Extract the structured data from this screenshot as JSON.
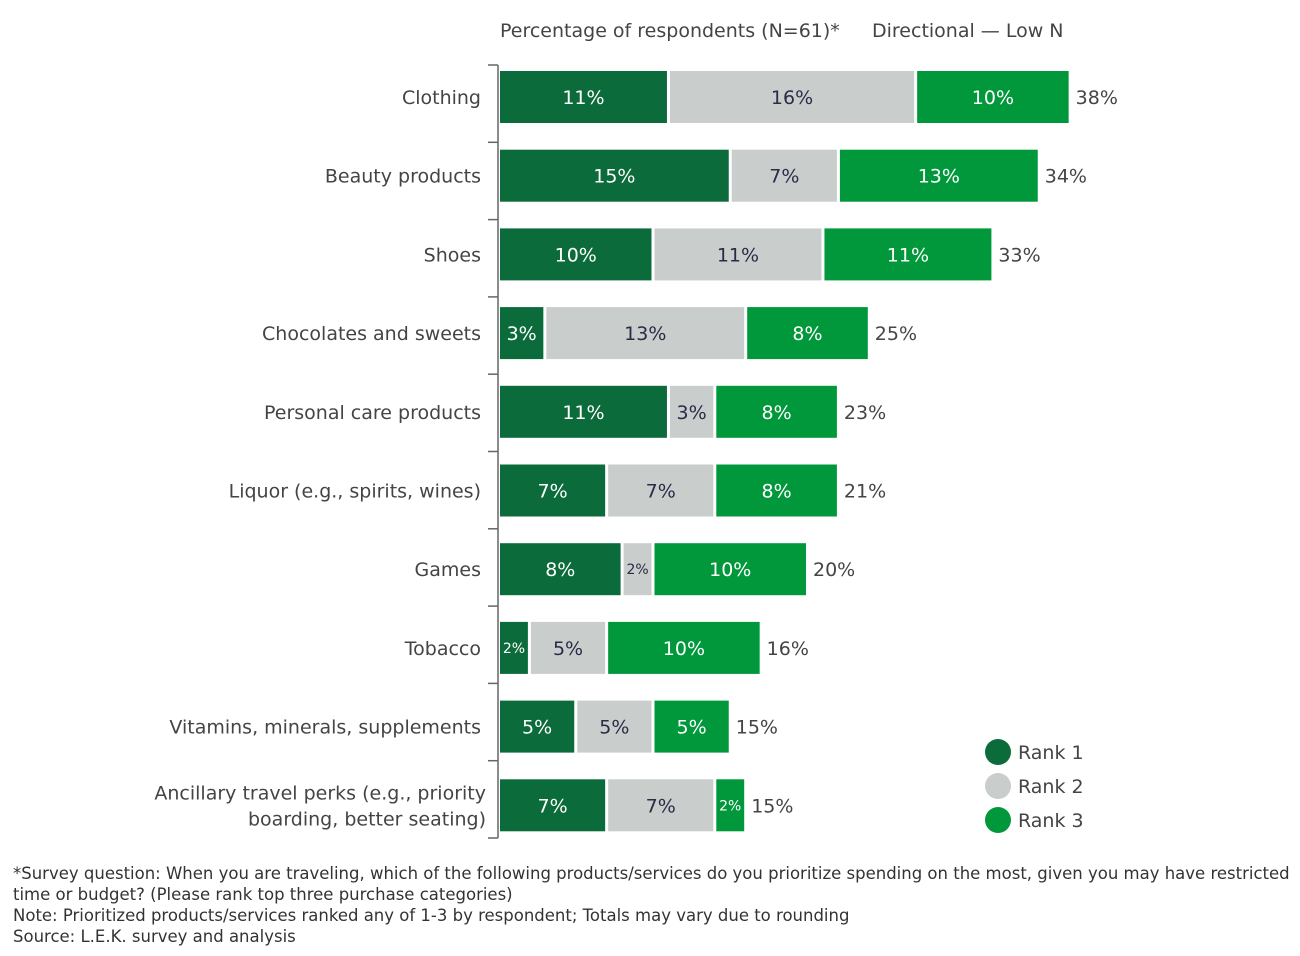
{
  "chart_data": {
    "type": "bar",
    "orientation": "horizontal",
    "stacked": true,
    "header_left": "Percentage of respondents (N=61)*",
    "header_right": "Directional — Low N",
    "categories": [
      "Clothing",
      "Beauty products",
      "Shoes",
      "Chocolates and sweets",
      "Personal care products",
      "Liquor (e.g., spirits, wines)",
      "Games",
      "Tobacco",
      "Vitamins, minerals, supplements",
      "Ancillary travel perks (e.g., priority boarding, better seating)"
    ],
    "category_lines": [
      [
        "Clothing"
      ],
      [
        "Beauty products"
      ],
      [
        "Shoes"
      ],
      [
        "Chocolates and sweets"
      ],
      [
        "Personal care products"
      ],
      [
        "Liquor (e.g., spirits, wines)"
      ],
      [
        "Games"
      ],
      [
        "Tobacco"
      ],
      [
        "Vitamins, minerals, supplements"
      ],
      [
        "Ancillary travel perks (e.g., priority",
        "boarding, better seating)"
      ]
    ],
    "series": [
      {
        "name": "Rank 1",
        "color": "#0b6b3a",
        "values": [
          11,
          15,
          10,
          3,
          11,
          7,
          8,
          2,
          5,
          7
        ]
      },
      {
        "name": "Rank 2",
        "color": "#c9cecd",
        "values": [
          16,
          7,
          11,
          13,
          3,
          7,
          2,
          5,
          5,
          7
        ]
      },
      {
        "name": "Rank 3",
        "color": "#00983a",
        "values": [
          10,
          13,
          11,
          8,
          8,
          8,
          10,
          10,
          5,
          2
        ]
      }
    ],
    "totals": [
      38,
      34,
      33,
      25,
      23,
      21,
      20,
      16,
      15,
      15
    ],
    "unit": "%",
    "legend_position": "bottom-right",
    "grid": false
  },
  "footnotes": {
    "survey": "*Survey question: When you are traveling, which of the following products/services do you prioritize spending on the most, given you may have restricted time or budget? (Please rank top three purchase categories)",
    "note": "Note: Prioritized products/services ranked any of 1-3 by respondent; Totals may vary due to rounding",
    "source": "Source: L.E.K. survey and analysis"
  }
}
